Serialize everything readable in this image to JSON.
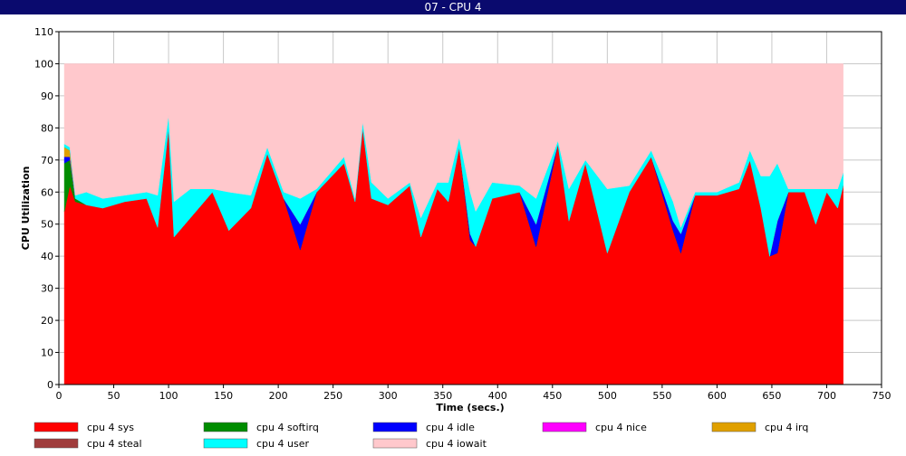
{
  "chart_data": {
    "type": "stacked-area",
    "title": "07 - CPU 4",
    "x_label": "Time (secs.)",
    "y_label": "CPU Utilization",
    "x": [
      5,
      10,
      15,
      25,
      40,
      60,
      80,
      90,
      100,
      105,
      120,
      140,
      155,
      175,
      190,
      205,
      220,
      235,
      260,
      270,
      277,
      285,
      300,
      320,
      330,
      345,
      355,
      365,
      375,
      380,
      395,
      420,
      435,
      455,
      465,
      480,
      500,
      520,
      540,
      560,
      567,
      580,
      600,
      620,
      630,
      640,
      648,
      655,
      665,
      680,
      690,
      700,
      710,
      715
    ],
    "series": [
      {
        "name": "cpu 4 sys",
        "color": "#ff0000",
        "values": [
          54,
          62,
          57,
          56,
          55,
          57,
          58,
          49,
          80,
          46,
          52,
          60,
          48,
          55,
          72,
          58,
          42,
          60,
          69,
          57,
          80,
          58,
          56,
          62,
          46,
          61,
          57,
          74,
          45,
          43,
          58,
          60,
          43,
          75,
          51,
          69,
          41,
          60,
          71,
          48,
          41,
          59,
          59,
          61,
          70,
          55,
          40,
          41,
          60,
          60,
          50,
          60,
          55,
          62
        ]
      },
      {
        "name": "cpu 4 softirq",
        "color": "#008c00",
        "values": [
          15,
          8,
          1,
          0,
          0,
          0,
          0,
          0,
          0,
          0,
          0,
          0,
          0,
          0,
          0,
          0,
          0,
          0,
          0,
          0,
          0,
          0,
          0,
          0,
          0,
          0,
          0,
          0,
          0,
          0,
          0,
          0,
          0,
          0,
          0,
          0,
          0,
          0,
          0,
          0,
          0,
          0,
          0,
          0,
          0,
          0,
          0,
          0,
          0,
          0,
          0,
          0,
          0,
          0
        ]
      },
      {
        "name": "cpu 4 idle",
        "color": "#0000ff",
        "values": [
          2,
          1,
          0,
          0,
          0,
          0,
          0,
          0,
          0,
          0,
          0,
          0,
          0,
          0,
          0,
          0,
          8,
          0,
          0,
          0,
          0,
          0,
          0,
          0,
          0,
          0,
          0,
          0,
          2,
          0,
          0,
          0,
          7,
          0,
          0,
          0,
          0,
          0,
          0,
          3,
          6,
          0,
          0,
          0,
          0,
          0,
          0,
          10,
          0,
          0,
          0,
          0,
          0,
          0
        ]
      },
      {
        "name": "cpu 4 nice",
        "color": "#ff00ff",
        "values": [
          0,
          0,
          0,
          0,
          0,
          0,
          0,
          0,
          0,
          0,
          0,
          0,
          0,
          0,
          0,
          0,
          0,
          0,
          0,
          0,
          0,
          0,
          0,
          0,
          0,
          0,
          0,
          0,
          0,
          0,
          0,
          0,
          0,
          0,
          0,
          0,
          0,
          0,
          0,
          0,
          0,
          0,
          0,
          0,
          0,
          0,
          0,
          0,
          0,
          0,
          0,
          0,
          0,
          0
        ]
      },
      {
        "name": "cpu 4 irq",
        "color": "#e0a000",
        "values": [
          3,
          2,
          0,
          0,
          0,
          0,
          0,
          0,
          0,
          0,
          0,
          0,
          0,
          0,
          0,
          0,
          0,
          0,
          0,
          0,
          0,
          0,
          0,
          0,
          0,
          0,
          0,
          0,
          0,
          0,
          0,
          0,
          0,
          0,
          0,
          0,
          0,
          0,
          0,
          0,
          0,
          0,
          0,
          0,
          0,
          0,
          0,
          0,
          0,
          0,
          0,
          0,
          0,
          0
        ]
      },
      {
        "name": "cpu 4 steal",
        "color": "#a03c3c",
        "values": [
          0,
          0,
          0,
          0,
          0,
          0,
          0,
          0,
          0,
          0,
          0,
          0,
          0,
          0,
          0,
          0,
          0,
          0,
          0,
          0,
          0,
          0,
          0,
          0,
          0,
          0,
          0,
          0,
          0,
          0,
          0,
          0,
          0,
          0,
          0,
          0,
          0,
          0,
          0,
          0,
          0,
          0,
          0,
          0,
          0,
          0,
          0,
          0,
          0,
          0,
          0,
          0,
          0,
          0
        ]
      },
      {
        "name": "cpu 4 user",
        "color": "#00ffff",
        "values": [
          1,
          1,
          1,
          4,
          3,
          2,
          2,
          10,
          4,
          11,
          9,
          1,
          12,
          4,
          2,
          2,
          8,
          1,
          2,
          1,
          2,
          5,
          2,
          1,
          6,
          2,
          6,
          3,
          13,
          11,
          5,
          2,
          8,
          1,
          10,
          1,
          20,
          2,
          2,
          6,
          2,
          1,
          1,
          2,
          3,
          10,
          25,
          18,
          1,
          1,
          11,
          1,
          6,
          4
        ]
      },
      {
        "name": "cpu 4 iowait",
        "color": "#ffc8cc",
        "values": [
          25,
          26,
          41,
          40,
          42,
          41,
          40,
          41,
          16,
          43,
          39,
          39,
          40,
          41,
          26,
          40,
          42,
          39,
          29,
          42,
          18,
          37,
          42,
          37,
          48,
          37,
          37,
          23,
          40,
          46,
          37,
          38,
          42,
          24,
          39,
          30,
          39,
          38,
          27,
          43,
          51,
          40,
          40,
          37,
          27,
          35,
          35,
          31,
          39,
          39,
          39,
          39,
          39,
          34
        ]
      }
    ],
    "xlim": [
      0,
      750
    ],
    "xticks": [
      0,
      50,
      100,
      150,
      200,
      250,
      300,
      350,
      400,
      450,
      500,
      550,
      600,
      650,
      700,
      750
    ],
    "ylim": [
      0,
      110
    ],
    "yticks": [
      0,
      10,
      20,
      30,
      40,
      50,
      60,
      70,
      80,
      90,
      100,
      110
    ],
    "grid": true
  }
}
